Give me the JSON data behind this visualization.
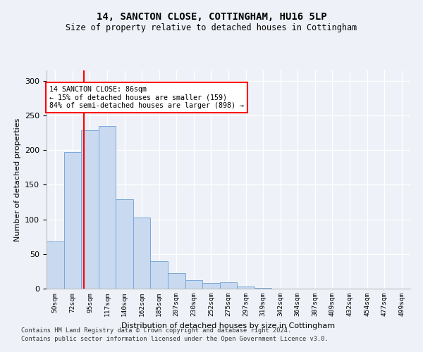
{
  "title": "14, SANCTON CLOSE, COTTINGHAM, HU16 5LP",
  "subtitle": "Size of property relative to detached houses in Cottingham",
  "xlabel": "Distribution of detached houses by size in Cottingham",
  "ylabel": "Number of detached properties",
  "categories": [
    "50sqm",
    "72sqm",
    "95sqm",
    "117sqm",
    "140sqm",
    "162sqm",
    "185sqm",
    "207sqm",
    "230sqm",
    "252sqm",
    "275sqm",
    "297sqm",
    "319sqm",
    "342sqm",
    "364sqm",
    "387sqm",
    "409sqm",
    "432sqm",
    "454sqm",
    "477sqm",
    "499sqm"
  ],
  "values": [
    68,
    197,
    229,
    235,
    129,
    103,
    40,
    22,
    12,
    8,
    9,
    3,
    1,
    0,
    0,
    0,
    0,
    0,
    0,
    0,
    0
  ],
  "bar_color": "#c9d9f0",
  "bar_edge_color": "#7aa8d8",
  "red_line_x": 1.65,
  "annotation_line1": "14 SANCTON CLOSE: 86sqm",
  "annotation_line2": "← 15% of detached houses are smaller (159)",
  "annotation_line3": "84% of semi-detached houses are larger (898) →",
  "ylim": [
    0,
    315
  ],
  "yticks": [
    0,
    50,
    100,
    150,
    200,
    250,
    300
  ],
  "footnote1": "Contains HM Land Registry data © Crown copyright and database right 2024.",
  "footnote2": "Contains public sector information licensed under the Open Government Licence v3.0.",
  "background_color": "#eef2f8",
  "plot_bg_color": "#eef2f8"
}
